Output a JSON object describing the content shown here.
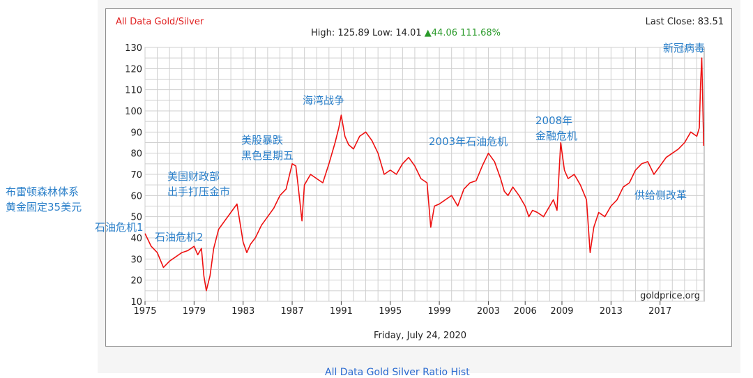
{
  "header": {
    "title": "All Data Gold/Silver",
    "last_close": "Last Close: 83.51",
    "high_low": "High: 125.89 Low: 14.01",
    "change": "▲44.06 111.68%"
  },
  "footer": {
    "date": "Friday, July 24, 2020"
  },
  "watermark": "goldprice.org",
  "bottom_link": "All Data Gold Silver Ratio Hist",
  "annotations": {
    "bretton_woods": [
      "布雷顿森林体系",
      "黄金固定35美元"
    ],
    "oil_crisis_1": [
      "石油危机1"
    ],
    "oil_crisis_2": [
      "石油危机2"
    ],
    "treasury": [
      "美国财政部",
      "出手打压金市"
    ],
    "black_friday": [
      "美股暴跌",
      "黑色星期五"
    ],
    "gulf_war": [
      "海湾战争"
    ],
    "oil_2003": [
      "2003年石油危机"
    ],
    "financial_2008": [
      "2008年",
      "金融危机"
    ],
    "covid": [
      "新冠病毒"
    ],
    "supply_reform": [
      "供给侧改革"
    ]
  },
  "colors": {
    "series": "#ee1111",
    "grid": "#cfcfcf",
    "annotation": "#2a7fc9",
    "title": "#e02020",
    "change": "#2a9a2a"
  },
  "chart_data": {
    "type": "line",
    "title": "All Data Gold/Silver",
    "xlabel": "",
    "ylabel": "",
    "ylim": [
      10,
      130
    ],
    "xlim": [
      1975,
      2020.6
    ],
    "grid": true,
    "yticks": [
      10,
      20,
      30,
      40,
      50,
      60,
      70,
      80,
      90,
      100,
      110,
      120,
      130
    ],
    "xticks": [
      1975,
      1979,
      1983,
      1987,
      1991,
      1995,
      1999,
      2003,
      2006,
      2009,
      2013,
      2017
    ],
    "series": [
      {
        "x": [
          1975.0,
          1975.5,
          1976.0,
          1976.5,
          1977.0,
          1977.5,
          1978.0,
          1978.5,
          1979.0,
          1979.3,
          1979.6,
          1979.8,
          1980.0,
          1980.3,
          1980.6,
          1981.0,
          1981.5,
          1982.0,
          1982.5,
          1983.0,
          1983.3,
          1983.6,
          1984.0,
          1984.5,
          1985.0,
          1985.5,
          1986.0,
          1986.5,
          1987.0,
          1987.3,
          1987.5,
          1987.8,
          1988.0,
          1988.5,
          1989.0,
          1989.5,
          1990.0,
          1990.5,
          1990.8,
          1991.0,
          1991.3,
          1991.6,
          1992.0,
          1992.5,
          1993.0,
          1993.5,
          1994.0,
          1994.5,
          1995.0,
          1995.5,
          1996.0,
          1996.5,
          1997.0,
          1997.5,
          1998.0,
          1998.3,
          1998.6,
          1999.0,
          1999.5,
          2000.0,
          2000.5,
          2001.0,
          2001.5,
          2002.0,
          2002.5,
          2003.0,
          2003.5,
          2004.0,
          2004.3,
          2004.6,
          2005.0,
          2005.5,
          2006.0,
          2006.3,
          2006.6,
          2007.0,
          2007.5,
          2008.0,
          2008.3,
          2008.6,
          2008.9,
          2009.2,
          2009.5,
          2010.0,
          2010.5,
          2011.0,
          2011.3,
          2011.6,
          2012.0,
          2012.5,
          2013.0,
          2013.5,
          2014.0,
          2014.5,
          2015.0,
          2015.5,
          2016.0,
          2016.5,
          2017.0,
          2017.5,
          2018.0,
          2018.5,
          2019.0,
          2019.5,
          2020.0,
          2020.2,
          2020.3,
          2020.4,
          2020.5,
          2020.56
        ],
        "y": [
          42,
          36,
          33,
          26,
          29,
          31,
          33,
          34,
          36,
          32,
          35,
          22,
          15,
          22,
          35,
          44,
          48,
          52,
          56,
          38,
          33,
          37,
          40,
          46,
          50,
          54,
          60,
          63,
          75,
          74,
          64,
          48,
          65,
          70,
          68,
          66,
          75,
          85,
          92,
          98,
          88,
          84,
          82,
          88,
          90,
          86,
          80,
          70,
          72,
          70,
          75,
          78,
          74,
          68,
          66,
          45,
          55,
          56,
          58,
          60,
          55,
          63,
          66,
          67,
          74,
          80,
          76,
          68,
          62,
          60,
          64,
          60,
          55,
          50,
          53,
          52,
          50,
          55,
          58,
          53,
          85,
          72,
          68,
          70,
          65,
          58,
          33,
          45,
          52,
          50,
          55,
          58,
          64,
          66,
          72,
          75,
          76,
          70,
          74,
          78,
          80,
          82,
          85,
          90,
          88,
          92,
          112,
          125,
          100,
          83.51
        ]
      }
    ]
  }
}
